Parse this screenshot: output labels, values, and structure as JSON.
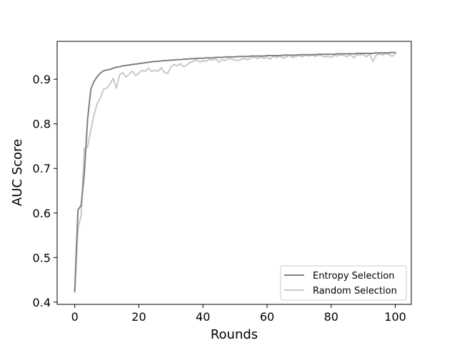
{
  "chart_data": {
    "type": "line",
    "title": "",
    "xlabel": "Rounds",
    "ylabel": "AUC Score",
    "xlim": [
      -5.5,
      105
    ],
    "ylim": [
      0.395,
      0.985
    ],
    "x_ticks": [
      0,
      20,
      40,
      60,
      80,
      100
    ],
    "y_ticks": [
      0.4,
      0.5,
      0.6,
      0.7,
      0.8,
      0.9
    ],
    "x_tick_labels": [
      "0",
      "20",
      "40",
      "60",
      "80",
      "100"
    ],
    "y_tick_labels": [
      "0.4",
      "0.5",
      "0.6",
      "0.7",
      "0.8",
      "0.9"
    ],
    "grid": false,
    "legend_position": "bottom-right",
    "series": [
      {
        "name": "Entropy Selection",
        "color": "#808080",
        "x": [
          0,
          1,
          2,
          3,
          4,
          5,
          6,
          7,
          8,
          9,
          10,
          11,
          12,
          13,
          14,
          15,
          16,
          17,
          18,
          19,
          20,
          21,
          22,
          23,
          24,
          25,
          26,
          27,
          28,
          29,
          30,
          31,
          32,
          33,
          34,
          35,
          36,
          37,
          38,
          39,
          40,
          41,
          42,
          43,
          44,
          45,
          46,
          47,
          48,
          49,
          50,
          51,
          52,
          53,
          54,
          55,
          56,
          57,
          58,
          59,
          60,
          61,
          62,
          63,
          64,
          65,
          66,
          67,
          68,
          69,
          70,
          71,
          72,
          73,
          74,
          75,
          76,
          77,
          78,
          79,
          80,
          81,
          82,
          83,
          84,
          85,
          86,
          87,
          88,
          89,
          90,
          91,
          92,
          93,
          94,
          95,
          96,
          97,
          98,
          99,
          100
        ],
        "y": [
          0.425,
          0.607,
          0.617,
          0.69,
          0.81,
          0.877,
          0.895,
          0.906,
          0.914,
          0.919,
          0.921,
          0.922,
          0.925,
          0.927,
          0.928,
          0.93,
          0.931,
          0.932,
          0.933,
          0.934,
          0.935,
          0.936,
          0.937,
          0.938,
          0.939,
          0.94,
          0.94,
          0.941,
          0.942,
          0.942,
          0.943,
          0.943,
          0.944,
          0.944,
          0.945,
          0.945,
          0.946,
          0.946,
          0.947,
          0.947,
          0.947,
          0.948,
          0.948,
          0.948,
          0.949,
          0.949,
          0.949,
          0.95,
          0.95,
          0.95,
          0.95,
          0.951,
          0.951,
          0.951,
          0.951,
          0.952,
          0.952,
          0.952,
          0.952,
          0.952,
          0.953,
          0.953,
          0.953,
          0.953,
          0.953,
          0.954,
          0.954,
          0.954,
          0.954,
          0.954,
          0.955,
          0.955,
          0.955,
          0.955,
          0.955,
          0.955,
          0.956,
          0.956,
          0.956,
          0.956,
          0.956,
          0.956,
          0.957,
          0.957,
          0.957,
          0.957,
          0.957,
          0.957,
          0.958,
          0.958,
          0.958,
          0.958,
          0.958,
          0.958,
          0.959,
          0.959,
          0.959,
          0.959,
          0.959,
          0.96,
          0.96
        ]
      },
      {
        "name": "Random Selection",
        "color": "#c8c8c8",
        "x": [
          0,
          1,
          2,
          3,
          4,
          5,
          6,
          7,
          8,
          9,
          10,
          11,
          12,
          13,
          14,
          15,
          16,
          17,
          18,
          19,
          20,
          21,
          22,
          23,
          24,
          25,
          26,
          27,
          28,
          29,
          30,
          31,
          32,
          33,
          34,
          35,
          36,
          37,
          38,
          39,
          40,
          41,
          42,
          43,
          44,
          45,
          46,
          47,
          48,
          49,
          50,
          51,
          52,
          53,
          54,
          55,
          56,
          57,
          58,
          59,
          60,
          61,
          62,
          63,
          64,
          65,
          66,
          67,
          68,
          69,
          70,
          71,
          72,
          73,
          74,
          75,
          76,
          77,
          78,
          79,
          80,
          81,
          82,
          83,
          84,
          85,
          86,
          87,
          88,
          89,
          90,
          91,
          92,
          93,
          94,
          95,
          96,
          97,
          98,
          99,
          100
        ],
        "y": [
          0.422,
          0.565,
          0.595,
          0.745,
          0.748,
          0.785,
          0.82,
          0.845,
          0.858,
          0.878,
          0.88,
          0.89,
          0.902,
          0.88,
          0.91,
          0.915,
          0.905,
          0.912,
          0.918,
          0.908,
          0.914,
          0.92,
          0.918,
          0.925,
          0.917,
          0.92,
          0.918,
          0.926,
          0.915,
          0.913,
          0.928,
          0.933,
          0.93,
          0.935,
          0.928,
          0.932,
          0.938,
          0.94,
          0.944,
          0.938,
          0.942,
          0.94,
          0.945,
          0.943,
          0.946,
          0.938,
          0.944,
          0.942,
          0.947,
          0.945,
          0.943,
          0.942,
          0.945,
          0.946,
          0.944,
          0.948,
          0.95,
          0.946,
          0.95,
          0.947,
          0.949,
          0.945,
          0.952,
          0.948,
          0.953,
          0.947,
          0.95,
          0.955,
          0.948,
          0.952,
          0.953,
          0.95,
          0.954,
          0.952,
          0.955,
          0.951,
          0.954,
          0.953,
          0.95,
          0.952,
          0.949,
          0.954,
          0.952,
          0.955,
          0.953,
          0.951,
          0.956,
          0.948,
          0.955,
          0.954,
          0.956,
          0.95,
          0.957,
          0.94,
          0.953,
          0.957,
          0.954,
          0.958,
          0.956,
          0.951,
          0.957
        ]
      }
    ]
  }
}
